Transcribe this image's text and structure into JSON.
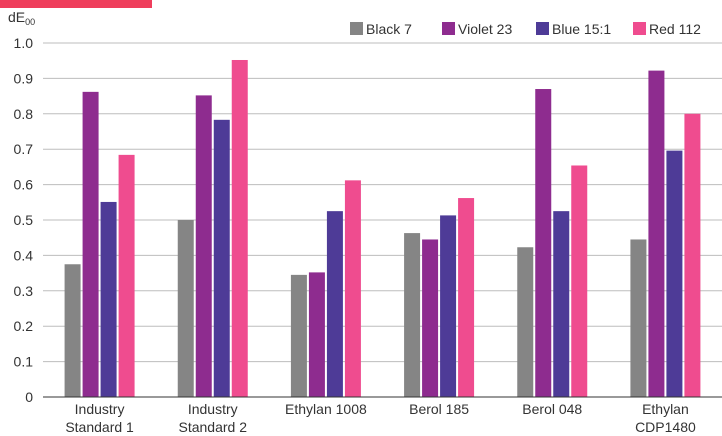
{
  "chart_data": {
    "type": "bar",
    "ylabel": "dE",
    "ylabel_sub": "00",
    "ylim": [
      0,
      1.0
    ],
    "yticks": [
      "0",
      "0.1",
      "0.2",
      "0.3",
      "0.4",
      "0.5",
      "0.6",
      "0.7",
      "0.8",
      "0.9",
      "1.0"
    ],
    "grid": true,
    "legend_position": "top-right",
    "categories": [
      [
        "Industry",
        "Standard 1"
      ],
      [
        "Industry",
        "Standard 2"
      ],
      [
        "Ethylan 1008"
      ],
      [
        "Berol 185"
      ],
      [
        "Berol 048"
      ],
      [
        "Ethylan",
        "CDP1480"
      ]
    ],
    "series": [
      {
        "name": "Black 7",
        "color": "#858585",
        "values": [
          0.375,
          0.5,
          0.345,
          0.463,
          0.423,
          0.445
        ]
      },
      {
        "name": "Violet 23",
        "color": "#8e2c8f",
        "values": [
          0.862,
          0.852,
          0.352,
          0.445,
          0.87,
          0.922
        ]
      },
      {
        "name": "Blue 15:1",
        "color": "#4e3b97",
        "values": [
          0.551,
          0.783,
          0.525,
          0.513,
          0.525,
          0.696
        ]
      },
      {
        "name": "Red 112",
        "color": "#ef4c8f",
        "values": [
          0.684,
          0.952,
          0.612,
          0.562,
          0.654,
          0.8
        ]
      }
    ]
  },
  "accent_color": "#ef3e5c",
  "grid_color": "#bdbdbd"
}
